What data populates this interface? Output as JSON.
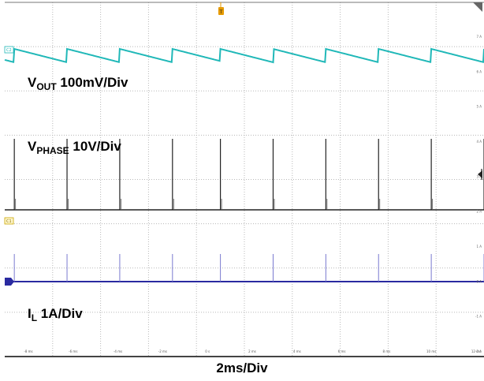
{
  "chart_data": {
    "type": "line",
    "title": "",
    "timebase_label": "2ms/Div",
    "x_ticks": [
      "-8 ms",
      "-6 ms",
      "-4 ms",
      "-2 ms",
      "0 s",
      "2 ms",
      "4 ms",
      "6 ms",
      "8 ms",
      "10 ms",
      "12 ms"
    ],
    "x_unit": "ms",
    "x_range": [
      -9,
      11
    ],
    "right_axis_ticks": [
      "7 A",
      "6 A",
      "5 A",
      "4 A",
      "3 A",
      "2 A",
      "1 A",
      "0 A",
      "-1 A",
      "-2 A"
    ],
    "colors": {
      "vout": "#20b8b8",
      "phase": "#222222",
      "il": "#2a2aa0",
      "trigger": "#e59a00",
      "grid": "#b8b8b8"
    },
    "series": [
      {
        "channel_tag": "C2",
        "label_main": "V",
        "label_sub": "OUT",
        "label_rest": " 100mV/Div",
        "description": "sawtooth ripple: sharp rise at each switching pulse, then linear decay",
        "pulse_times_ms": [
          -8.6,
          -6.4,
          -4.2,
          -2.0,
          0.0,
          2.2,
          4.4,
          6.6,
          8.8,
          11.0
        ],
        "ripple_mV": 20
      },
      {
        "channel_tag": "",
        "label_main": "V",
        "label_sub": "PHASE",
        "label_rest": " 10V/Div",
        "description": "switch node: narrow pulses at each switching event",
        "pulse_times_ms": [
          -8.6,
          -6.4,
          -4.2,
          -2.0,
          0.0,
          2.2,
          4.4,
          6.6,
          8.8,
          11.0
        ],
        "pulse_height_V": 18
      },
      {
        "channel_tag": "C1",
        "label_main": "I",
        "label_sub": "L",
        "label_rest": " 1A/Div",
        "description": "inductor current: near zero with short spikes at each switching pulse",
        "pulse_times_ms": [
          -8.6,
          -6.4,
          -4.2,
          -2.0,
          0.0,
          2.2,
          4.4,
          6.6,
          8.8,
          11.0
        ],
        "spike_A": 0.7
      }
    ]
  }
}
